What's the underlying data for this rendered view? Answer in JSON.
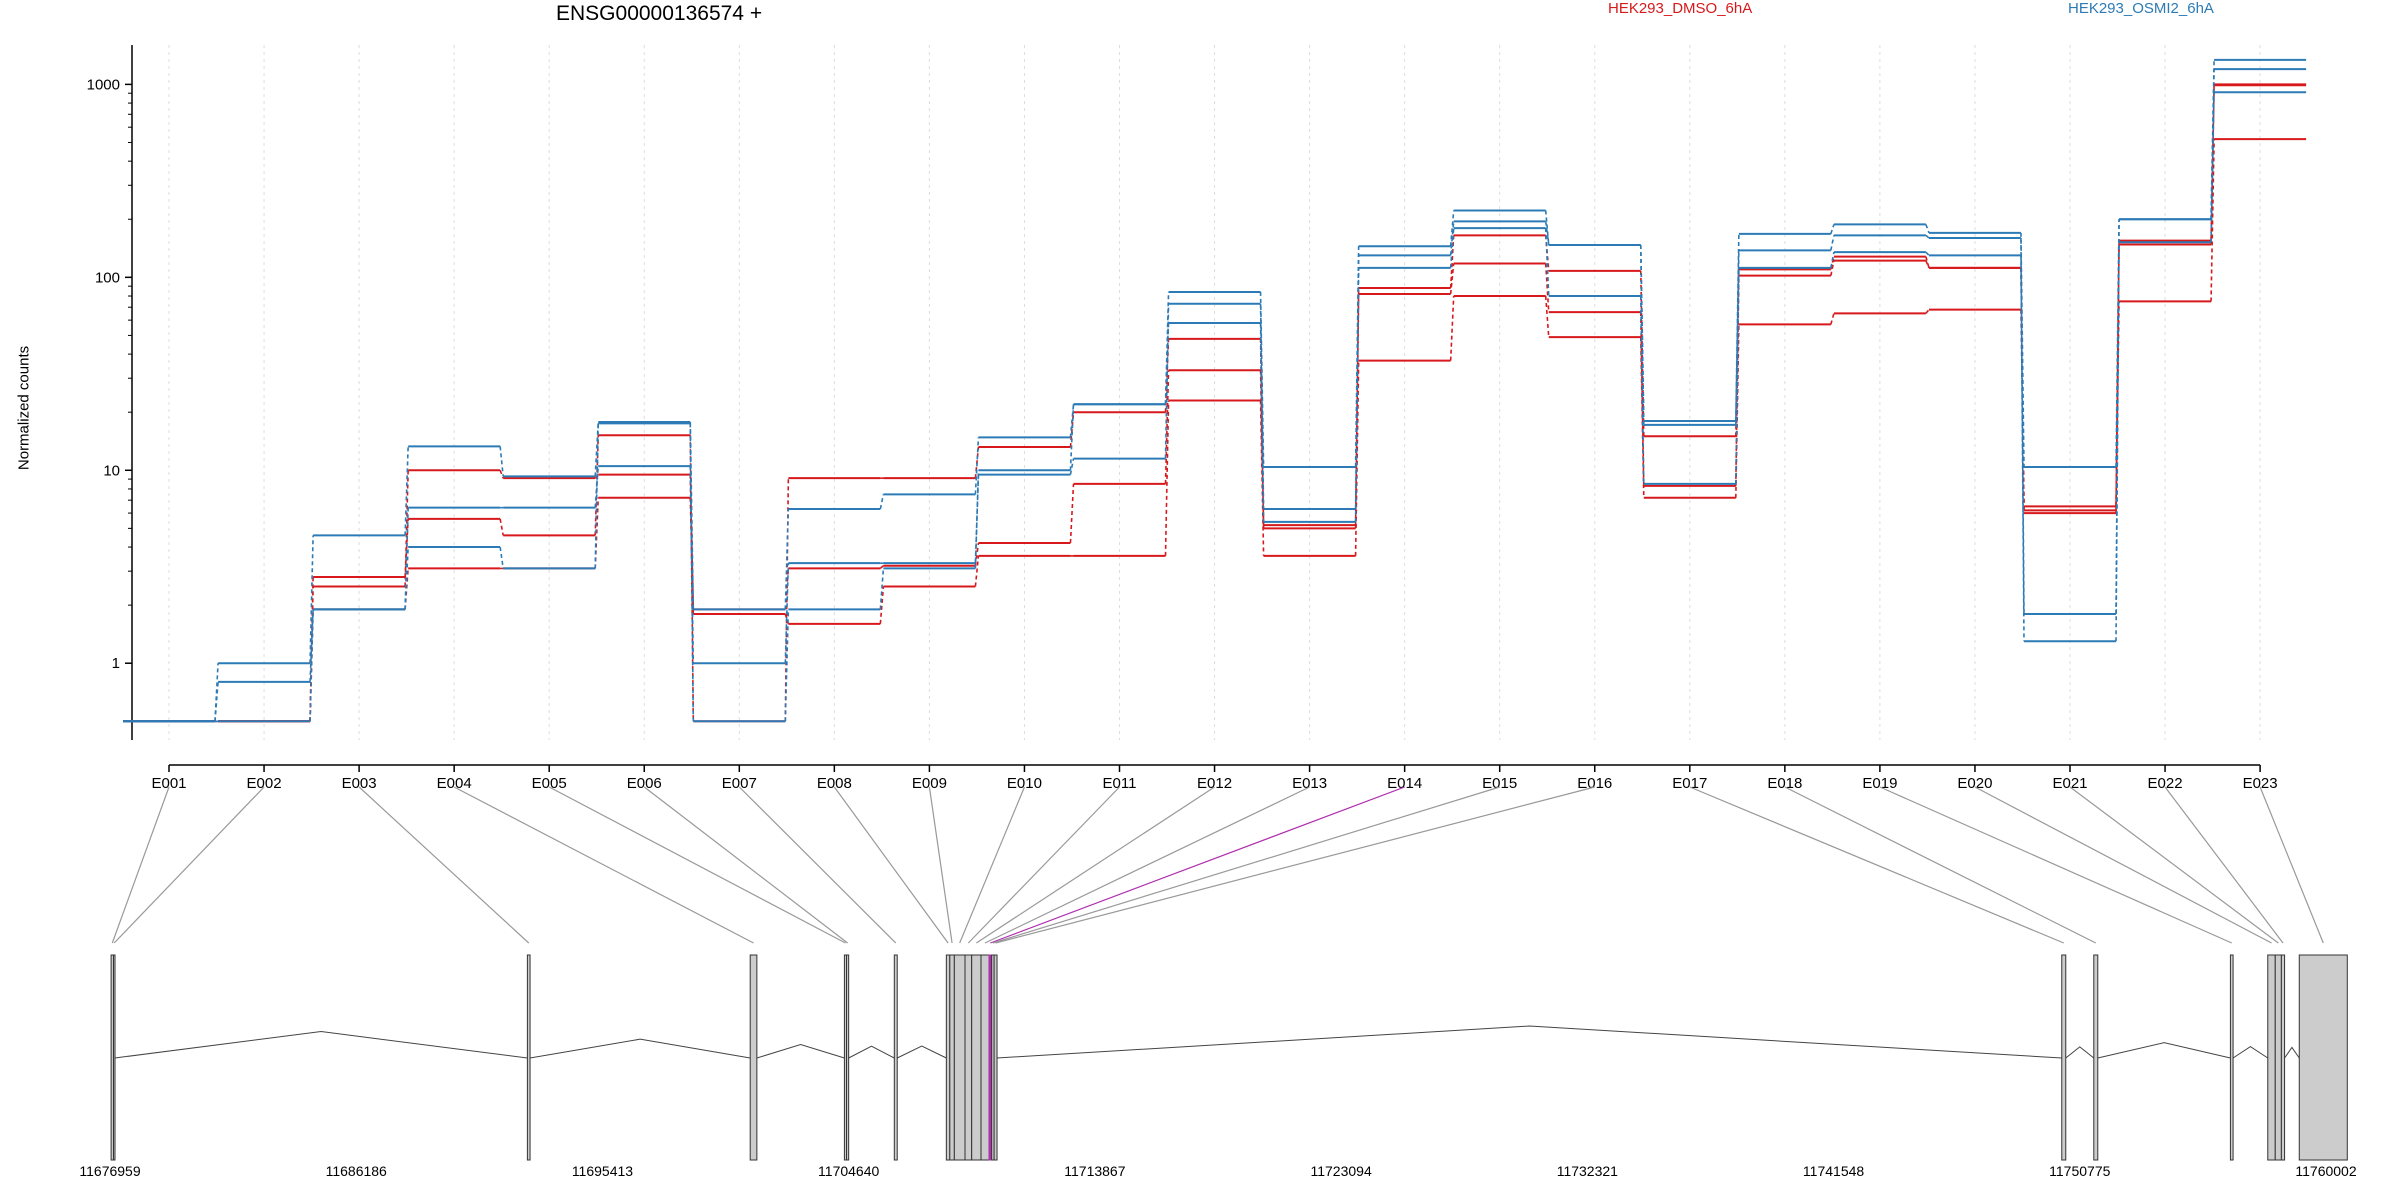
{
  "chart_data": {
    "type": "line",
    "title": "ENSG00000136574 +",
    "ylabel": "Normalized counts",
    "yscale": "log",
    "ylim": [
      0.4,
      1600
    ],
    "yticks": [
      "1",
      "10",
      "100",
      "1000"
    ],
    "grid": "vertical dotted at exon ticks",
    "legend_placement": "top",
    "categories": [
      "E001",
      "E002",
      "E003",
      "E004",
      "E005",
      "E006",
      "E007",
      "E008",
      "E009",
      "E010",
      "E011",
      "E012",
      "E013",
      "E014",
      "E015",
      "E016",
      "E017",
      "E018",
      "E019",
      "E020",
      "E021",
      "E022",
      "E023"
    ],
    "colors": {
      "HEK293_DMSO_6hA": "#d7191c",
      "HEK293_OSMI2_6hA": "#2c7bb6"
    },
    "series": [
      {
        "name": "HEK293_DMSO_6hA",
        "values": [
          0.5,
          0.5,
          2.8,
          5.6,
          4.6,
          15.2,
          0.5,
          9.1,
          9.1,
          13.2,
          20.0,
          48.0,
          5.2,
          88.0,
          165.0,
          108.0,
          15.0,
          110.0,
          128.0,
          112.0,
          6.2,
          148.0,
          1000.0
        ]
      },
      {
        "name": "HEK293_DMSO_6hA",
        "values": [
          0.5,
          0.5,
          2.5,
          10.0,
          9.1,
          9.5,
          1.9,
          3.1,
          3.2,
          4.2,
          8.5,
          33.0,
          5.0,
          82.0,
          118.0,
          66.0,
          8.3,
          102.0,
          122.0,
          112.0,
          6.0,
          155.0,
          990.0
        ]
      },
      {
        "name": "HEK293_DMSO_6hA",
        "values": [
          0.5,
          0.5,
          1.9,
          3.1,
          3.1,
          7.2,
          1.8,
          1.6,
          2.5,
          3.6,
          3.6,
          23.0,
          3.6,
          37.0,
          80.0,
          49.0,
          7.2,
          57.0,
          65.0,
          68.0,
          6.5,
          75.0,
          520.0
        ]
      },
      {
        "name": "HEK293_OSMI2_6hA",
        "values": [
          0.5,
          1.0,
          4.6,
          13.3,
          9.3,
          17.8,
          1.9,
          6.3,
          7.5,
          14.8,
          22.0,
          84.0,
          10.4,
          145.0,
          222.0,
          147.0,
          18.0,
          168.0,
          188.0,
          170.0,
          10.4,
          200.0,
          1340.0
        ]
      },
      {
        "name": "HEK293_OSMI2_6hA",
        "values": [
          0.5,
          0.8,
          1.9,
          6.4,
          6.4,
          10.5,
          1.0,
          3.3,
          3.3,
          9.5,
          11.5,
          73.0,
          6.3,
          130.0,
          195.0,
          147.0,
          17.2,
          138.0,
          165.0,
          160.0,
          1.8,
          200.0,
          1200.0
        ]
      },
      {
        "name": "HEK293_OSMI2_6hA",
        "values": [
          0.5,
          0.5,
          1.9,
          4.0,
          3.1,
          17.5,
          0.5,
          1.9,
          3.1,
          10.0,
          22.0,
          58.0,
          5.4,
          112.0,
          180.0,
          80.0,
          8.5,
          112.0,
          135.0,
          130.0,
          1.3,
          152.0,
          910.0
        ]
      }
    ],
    "gene_model": {
      "coordinate_ticks": [
        "11676959",
        "11686186",
        "11695413",
        "11704640",
        "11713867",
        "11723094",
        "11732321",
        "11741548",
        "11750775",
        "11760002"
      ],
      "coordinate_tick_values": [
        11676959,
        11686186,
        11695413,
        11704640,
        11713867,
        11723094,
        11732321,
        11741548,
        11750775,
        11760002
      ],
      "exon_coordinates": [
        [
          11677000,
          11677090
        ],
        [
          11677090,
          11677140
        ],
        [
          11692600,
          11692700
        ],
        [
          11700950,
          11701200
        ],
        [
          11704480,
          11704560
        ],
        [
          11704560,
          11704640
        ],
        [
          11706350,
          11706460
        ],
        [
          11708300,
          11708430
        ],
        [
          11708430,
          11708600
        ],
        [
          11708600,
          11709000
        ],
        [
          11709000,
          11709250
        ],
        [
          11709250,
          11709600
        ],
        [
          11709600,
          11709900
        ],
        [
          11709900,
          11710000
        ],
        [
          11710000,
          11710090
        ],
        [
          11710090,
          11710200
        ],
        [
          11750100,
          11750250
        ],
        [
          11751300,
          11751450
        ],
        [
          11756420,
          11756520
        ],
        [
          11757820,
          11758100
        ],
        [
          11758100,
          11758330
        ],
        [
          11758330,
          11758450
        ],
        [
          11759000,
          11760800
        ]
      ],
      "highlighted_exon": "E014",
      "highlight_color": "#b030b0"
    }
  }
}
